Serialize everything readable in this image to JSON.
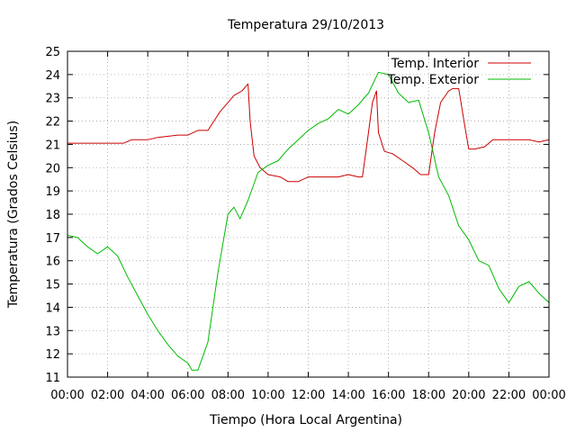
{
  "chart_data": {
    "type": "line",
    "title": "Temperatura 29/10/2013",
    "xlabel": "Tiempo (Hora Local Argentina)",
    "ylabel": "Temperatura (Grados Celsius)",
    "xlim": [
      0,
      24
    ],
    "ylim": [
      11,
      25
    ],
    "grid": true,
    "legend_position": "top-right",
    "x_ticks": [
      {
        "value": 0,
        "label": "00:00"
      },
      {
        "value": 2,
        "label": "02:00"
      },
      {
        "value": 4,
        "label": "04:00"
      },
      {
        "value": 6,
        "label": "06:00"
      },
      {
        "value": 8,
        "label": "08:00"
      },
      {
        "value": 10,
        "label": "10:00"
      },
      {
        "value": 12,
        "label": "12:00"
      },
      {
        "value": 14,
        "label": "14:00"
      },
      {
        "value": 16,
        "label": "16:00"
      },
      {
        "value": 18,
        "label": "18:00"
      },
      {
        "value": 20,
        "label": "20:00"
      },
      {
        "value": 22,
        "label": "22:00"
      },
      {
        "value": 24,
        "label": "00:00"
      }
    ],
    "y_ticks": [
      11,
      12,
      13,
      14,
      15,
      16,
      17,
      18,
      19,
      20,
      21,
      22,
      23,
      24,
      25
    ],
    "series": [
      {
        "name": "Temp. Interior",
        "color": "#cc0000",
        "x": [
          0,
          1,
          2,
          2.8,
          3.2,
          4,
          4.5,
          5.5,
          6.0,
          6.5,
          7,
          7.3,
          7.6,
          8.0,
          8.3,
          8.7,
          9.0,
          9.1,
          9.3,
          9.6,
          10.0,
          10.6,
          11.0,
          11.5,
          12.0,
          12.5,
          13.0,
          13.5,
          14.0,
          14.5,
          14.7,
          15.0,
          15.2,
          15.4,
          15.5,
          15.8,
          16.2,
          16.7,
          17.2,
          17.6,
          18.0,
          18.3,
          18.6,
          19.0,
          19.2,
          19.5,
          19.8,
          20.0,
          20.3,
          20.8,
          21.2,
          22.0,
          23.0,
          23.5,
          24.0
        ],
        "values": [
          21.05,
          21.05,
          21.05,
          21.05,
          21.2,
          21.2,
          21.3,
          21.4,
          21.4,
          21.6,
          21.6,
          22.0,
          22.4,
          22.8,
          23.1,
          23.3,
          23.6,
          22.0,
          20.5,
          20.0,
          19.7,
          19.6,
          19.4,
          19.4,
          19.6,
          19.6,
          19.6,
          19.6,
          19.7,
          19.6,
          19.6,
          21.5,
          22.8,
          23.3,
          21.5,
          20.7,
          20.6,
          20.3,
          20.0,
          19.7,
          19.7,
          21.5,
          22.8,
          23.3,
          23.4,
          23.4,
          21.8,
          20.8,
          20.8,
          20.9,
          21.2,
          21.2,
          21.2,
          21.1,
          21.2
        ]
      },
      {
        "name": "Temp. Exterior",
        "color": "#00bb00",
        "x": [
          0,
          0.5,
          1.0,
          1.5,
          2.0,
          2.5,
          3.0,
          3.5,
          4.0,
          4.5,
          5.0,
          5.5,
          6.0,
          6.2,
          6.5,
          7.0,
          7.5,
          8.0,
          8.3,
          8.6,
          9.0,
          9.5,
          10.0,
          10.5,
          11.0,
          11.5,
          12.0,
          12.5,
          13.0,
          13.5,
          14.0,
          14.5,
          15.0,
          15.5,
          16.0,
          16.5,
          17.0,
          17.5,
          18.0,
          18.5,
          19.0,
          19.5,
          20.0,
          20.5,
          21.0,
          21.5,
          22.0,
          22.5,
          23.0,
          23.5,
          24.0
        ],
        "values": [
          17.1,
          17.0,
          16.6,
          16.3,
          16.6,
          16.2,
          15.3,
          14.5,
          13.7,
          13.0,
          12.4,
          11.9,
          11.6,
          11.3,
          11.3,
          12.5,
          15.5,
          18.0,
          18.3,
          17.8,
          18.6,
          19.8,
          20.1,
          20.3,
          20.8,
          21.2,
          21.6,
          21.9,
          22.1,
          22.5,
          22.3,
          22.7,
          23.2,
          24.1,
          24.0,
          23.2,
          22.8,
          22.9,
          21.5,
          19.6,
          18.8,
          17.5,
          16.9,
          16.0,
          15.8,
          14.8,
          14.2,
          14.9,
          15.1,
          14.6,
          14.2
        ]
      }
    ]
  }
}
